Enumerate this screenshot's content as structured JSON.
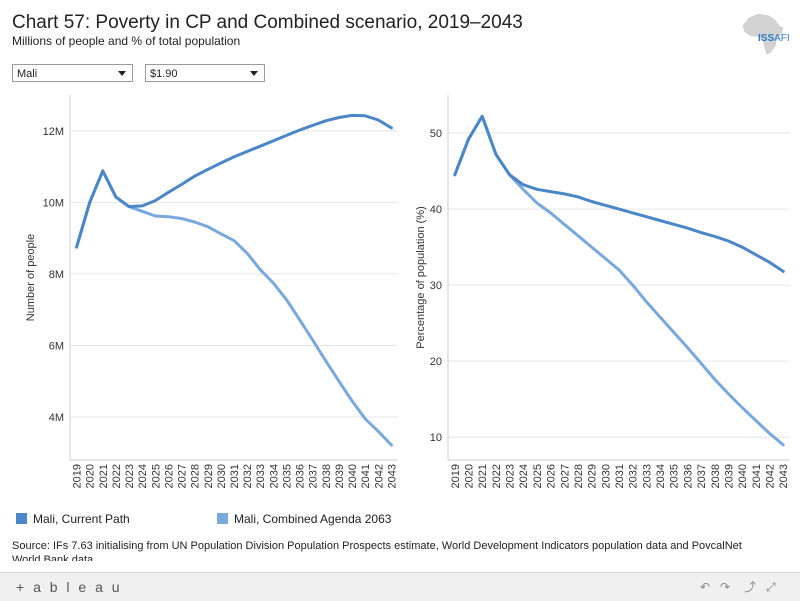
{
  "header": {
    "title": "Chart 57: Poverty in CP and Combined scenario, 2019–2043",
    "subtitle": "Millions of people and % of total population",
    "logo_text_main": "ISS",
    "logo_text_sub": "AFI"
  },
  "filters": {
    "country": "Mali",
    "poverty_line": "$1.90"
  },
  "legend": {
    "items": [
      {
        "label": "Mali, Current Path",
        "color": "#4a86c8"
      },
      {
        "label": "Mali, Combined Agenda 2063",
        "color": "#79a9dc"
      }
    ]
  },
  "source": "Source: IFs 7.63 initialising from UN Population Division Population Prospects estimate, World Development Indicators population data and PovcalNet World Bank data",
  "footer": {
    "brand": "+ a b l e a u"
  },
  "chart_data": [
    {
      "type": "line",
      "title": "",
      "xlabel": "",
      "ylabel": "Number of people",
      "x": [
        "2019",
        "2020",
        "2021",
        "2022",
        "2023",
        "2024",
        "2025",
        "2026",
        "2027",
        "2028",
        "2029",
        "2030",
        "2031",
        "2032",
        "2033",
        "2034",
        "2035",
        "2036",
        "2037",
        "2038",
        "2039",
        "2040",
        "2041",
        "2042",
        "2043"
      ],
      "ylim": [
        2.8,
        13.0
      ],
      "yticks": [
        4,
        6,
        8,
        10,
        12
      ],
      "ytick_labels": [
        "4M",
        "6M",
        "8M",
        "10M",
        "12M"
      ],
      "grid": true,
      "series": [
        {
          "name": "Mali, Current Path",
          "color": "#4a86c8",
          "values": [
            8.75,
            10.0,
            10.88,
            10.15,
            9.88,
            9.9,
            10.05,
            10.28,
            10.5,
            10.73,
            10.92,
            11.1,
            11.27,
            11.42,
            11.57,
            11.72,
            11.87,
            12.02,
            12.15,
            12.28,
            12.37,
            12.43,
            12.42,
            12.3,
            12.08
          ]
        },
        {
          "name": "Mali, Combined Agenda 2063",
          "color": "#79a9dc",
          "values": [
            8.75,
            10.0,
            10.88,
            10.15,
            9.88,
            9.75,
            9.62,
            9.6,
            9.55,
            9.45,
            9.32,
            9.12,
            8.93,
            8.58,
            8.12,
            7.74,
            7.28,
            6.72,
            6.15,
            5.57,
            5.0,
            4.45,
            3.95,
            3.6,
            3.22
          ]
        }
      ]
    },
    {
      "type": "line",
      "title": "",
      "xlabel": "",
      "ylabel": "Percentage of population (%)",
      "x": [
        "2019",
        "2020",
        "2021",
        "2022",
        "2023",
        "2024",
        "2025",
        "2026",
        "2027",
        "2028",
        "2029",
        "2030",
        "2031",
        "2032",
        "2033",
        "2034",
        "2035",
        "2036",
        "2037",
        "2038",
        "2039",
        "2040",
        "2041",
        "2042",
        "2043"
      ],
      "ylim": [
        7,
        55
      ],
      "yticks": [
        10,
        20,
        30,
        40,
        50
      ],
      "ytick_labels": [
        "10",
        "20",
        "30",
        "40",
        "50"
      ],
      "grid": true,
      "series": [
        {
          "name": "Mali, Current Path",
          "color": "#4a86c8",
          "values": [
            44.5,
            49.2,
            52.2,
            47.2,
            44.5,
            43.2,
            42.6,
            42.3,
            42.0,
            41.6,
            41.0,
            40.5,
            40.0,
            39.5,
            39.0,
            38.5,
            38.0,
            37.5,
            36.9,
            36.4,
            35.8,
            35.0,
            34.0,
            33.0,
            31.8
          ]
        },
        {
          "name": "Mali, Combined Agenda 2063",
          "color": "#79a9dc",
          "values": [
            44.5,
            49.2,
            52.2,
            47.2,
            44.5,
            42.6,
            40.8,
            39.5,
            38.0,
            36.5,
            35.0,
            33.5,
            32.0,
            30.0,
            27.8,
            25.8,
            23.8,
            21.8,
            19.7,
            17.6,
            15.7,
            13.9,
            12.2,
            10.5,
            9.0
          ]
        }
      ]
    }
  ]
}
